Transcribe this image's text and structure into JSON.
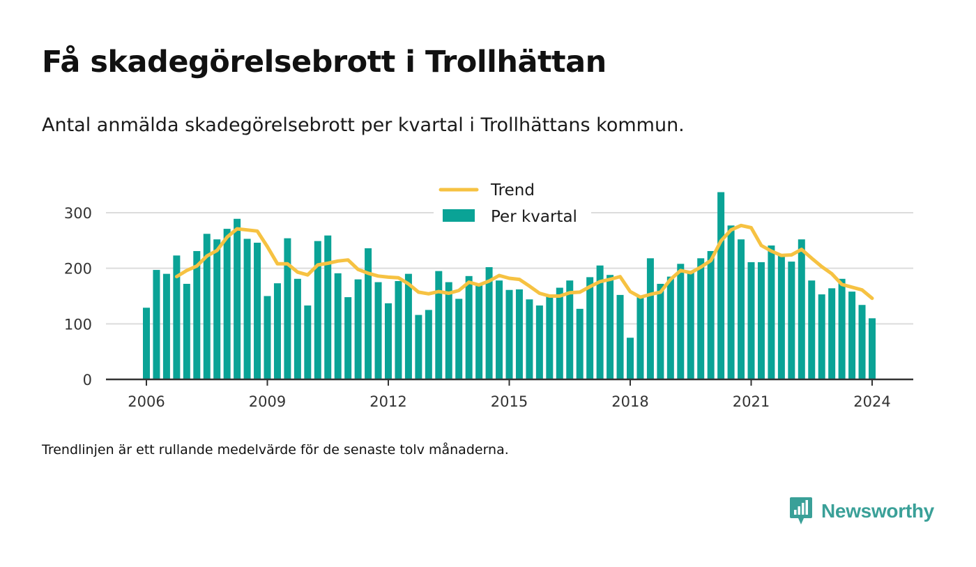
{
  "title": "Få skadegörelsebrott i Trollhättan",
  "subtitle": "Antal anmälda skadegörelsebrott per kvartal i Trollhättans kommun.",
  "footnote": "Trendlinjen är ett rullande medelvärde för de senaste tolv månaderna.",
  "brand": {
    "name": "Newsworthy",
    "icon": "newsworthy-logo-icon",
    "color": "#3aa098"
  },
  "chart_data": {
    "type": "bar",
    "x_start": 2006.0,
    "x_step": 0.25,
    "x_ticks": [
      2006,
      2009,
      2012,
      2015,
      2018,
      2021,
      2024
    ],
    "ylim": [
      0,
      300
    ],
    "y_ticks": [
      0,
      100,
      200,
      300
    ],
    "grid": true,
    "legend_position": "top-center",
    "series": [
      {
        "name": "Per kvartal",
        "type": "bar",
        "color": "#0aa396",
        "values": [
          129,
          197,
          190,
          223,
          172,
          231,
          262,
          252,
          271,
          289,
          253,
          246,
          150,
          173,
          254,
          181,
          133,
          249,
          259,
          191,
          148,
          180,
          236,
          175,
          137,
          177,
          190,
          116,
          125,
          195,
          175,
          145,
          186,
          172,
          202,
          178,
          161,
          162,
          144,
          133,
          150,
          165,
          178,
          127,
          184,
          205,
          188,
          152,
          75,
          150,
          218,
          172,
          185,
          208,
          195,
          218,
          231,
          337,
          277,
          252,
          211,
          211,
          241,
          225,
          212,
          252,
          178,
          153,
          164,
          181,
          158,
          134,
          110
        ]
      },
      {
        "name": "Trend",
        "type": "line",
        "color": "#f6c242",
        "values": [
          null,
          null,
          null,
          185,
          196,
          204,
          222,
          232,
          256,
          271,
          269,
          267,
          239,
          208,
          208,
          193,
          188,
          206,
          209,
          213,
          215,
          198,
          191,
          186,
          184,
          183,
          172,
          157,
          154,
          158,
          155,
          160,
          175,
          170,
          177,
          187,
          182,
          180,
          168,
          155,
          150,
          150,
          156,
          157,
          167,
          176,
          180,
          185,
          158,
          148,
          153,
          157,
          180,
          196,
          192,
          202,
          214,
          249,
          269,
          277,
          273,
          241,
          231,
          223,
          224,
          234,
          218,
          203,
          190,
          171,
          166,
          161,
          146
        ]
      }
    ]
  }
}
